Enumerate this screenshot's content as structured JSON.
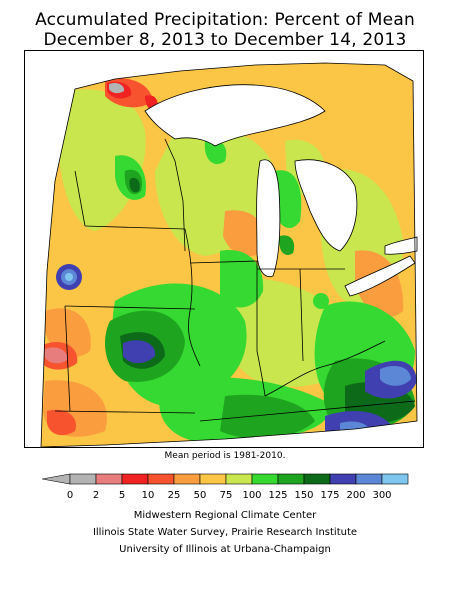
{
  "title_line1": "Accumulated Precipitation: Percent of Mean",
  "title_line2": "December 8, 2013 to December 14, 2013",
  "mean_note": "Mean period is 1981-2010.",
  "legend": {
    "bins": [
      {
        "label": "0",
        "color": "#b3b3b3"
      },
      {
        "label": "2",
        "color": "#e87d7d"
      },
      {
        "label": "5",
        "color": "#f02222"
      },
      {
        "label": "10",
        "color": "#f7532e"
      },
      {
        "label": "25",
        "color": "#f99d3f"
      },
      {
        "label": "50",
        "color": "#fbc545"
      },
      {
        "label": "75",
        "color": "#c9e64f"
      },
      {
        "label": "100",
        "color": "#35d931"
      },
      {
        "label": "125",
        "color": "#1fa41f"
      },
      {
        "label": "150",
        "color": "#0c6a19"
      },
      {
        "label": "175",
        "color": "#4040b0"
      },
      {
        "label": "200",
        "color": "#5c86d6"
      },
      {
        "label": "300",
        "color": "#7fc6ee"
      }
    ]
  },
  "credits": [
    "Midwestern Regional Climate Center",
    "Illinois State Water Survey, Prairie Research Institute",
    "University of Illinois at Urbana-Champaign"
  ]
}
